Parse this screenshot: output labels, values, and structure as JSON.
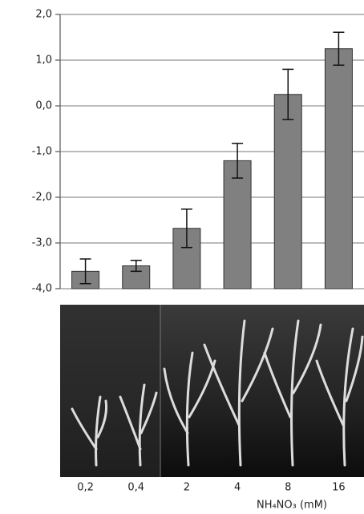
{
  "chart_data": {
    "type": "bar",
    "categories": [
      "0,2",
      "0,4",
      "2",
      "4",
      "8",
      "16"
    ],
    "values": [
      -3.62,
      -3.5,
      -2.68,
      -1.2,
      0.25,
      1.25
    ],
    "errors": [
      0.27,
      0.12,
      0.42,
      0.38,
      0.55,
      0.36
    ],
    "color": "#808080",
    "ylim": [
      -4,
      2
    ],
    "yticks": [
      {
        "value": -4,
        "label": "-4,0"
      },
      {
        "value": -3,
        "label": "-3,0"
      },
      {
        "value": -2,
        "label": "-2,0"
      },
      {
        "value": -1,
        "label": "-1,0"
      },
      {
        "value": 0,
        "label": "0,0"
      },
      {
        "value": 1,
        "label": "1,0"
      },
      {
        "value": 2,
        "label": "2,0"
      }
    ],
    "grid": true,
    "x_label": "NH₄NO₃ (mM)"
  }
}
